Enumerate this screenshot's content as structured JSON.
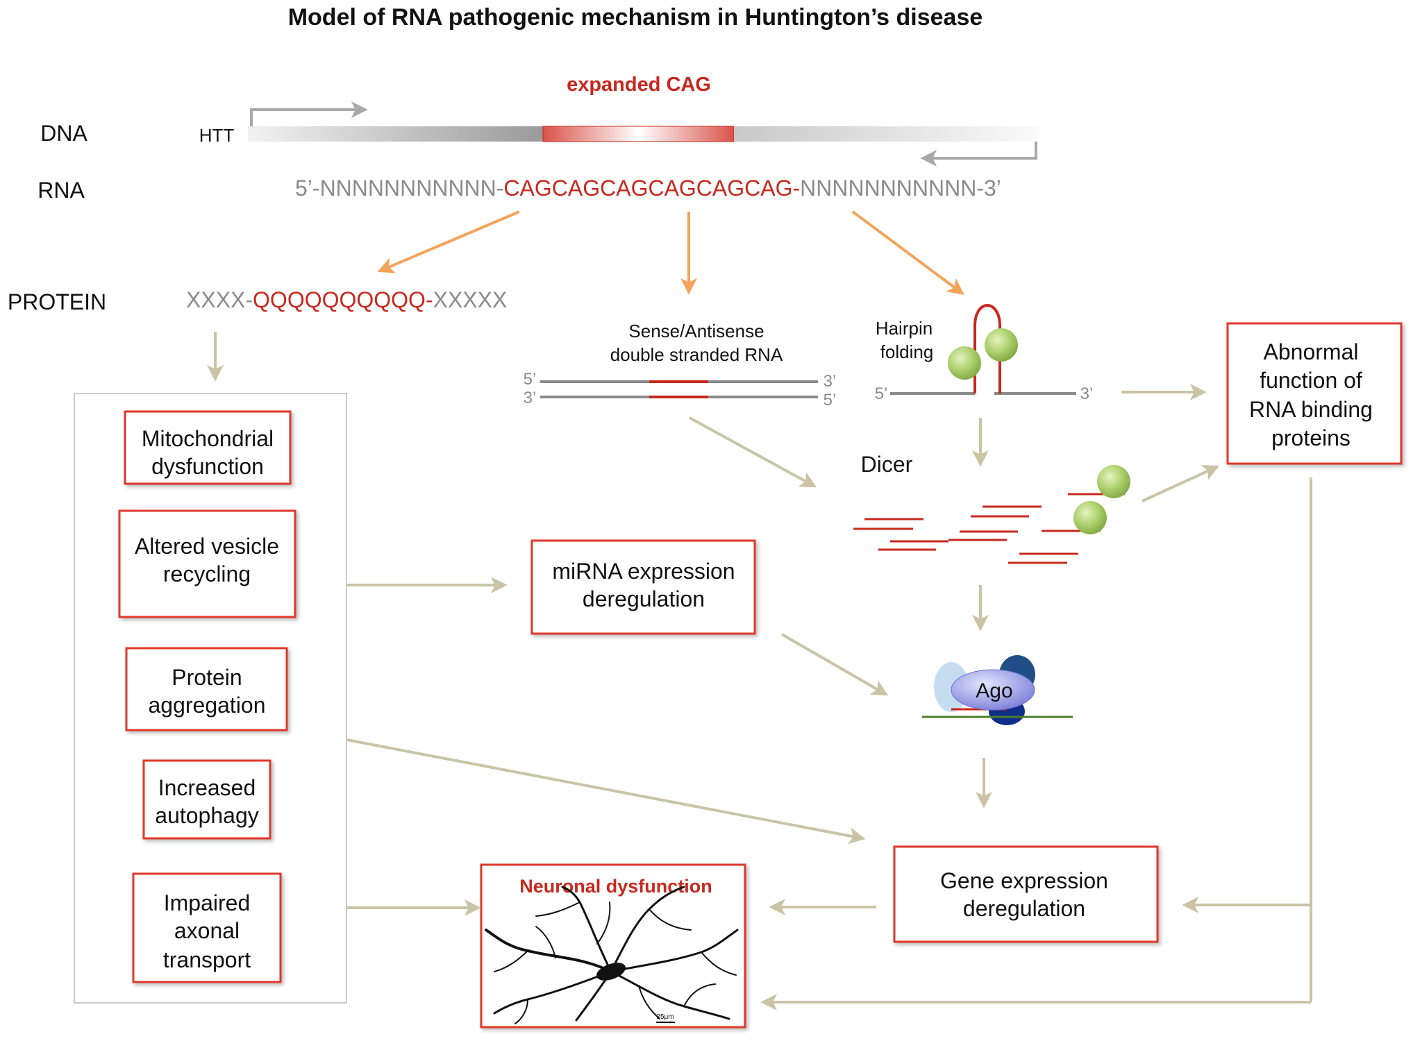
{
  "title": "Model of RNA pathogenic mechanism  in Huntington’s disease",
  "labels": {
    "expanded_cag": "expanded CAG",
    "dna": "DNA",
    "htt": "HTT",
    "rna": "RNA",
    "protein": "PROTEIN",
    "dicer": "Dicer",
    "ago": "Ago"
  },
  "rna_sequence": {
    "left": "5’-NNNNNNNNNNN-",
    "repeat": "CAGCAGCAGCAGCAGCAG-",
    "right": "NNNNNNNNNNN-3’"
  },
  "protein_sequence": {
    "left": "XXXX-",
    "repeat": "QQQQQQQQQQ-",
    "right": "XXXXX"
  },
  "dsrna": {
    "label_line1": "Sense/Antisense",
    "label_line2": "double stranded RNA",
    "top_left": "5’",
    "top_right": "3’",
    "bottom_left": "3’",
    "bottom_right": "5’"
  },
  "hairpin": {
    "label_line1": "Hairpin",
    "label_line2": "folding",
    "left_end": "5’",
    "right_end": "3’"
  },
  "boxes": {
    "mitochondrial": [
      "Mitochondrial",
      "dysfunction"
    ],
    "vesicle": [
      "Altered vesicle",
      "recycling"
    ],
    "aggregation": [
      "Protein",
      "aggregation"
    ],
    "autophagy": [
      "Increased",
      "autophagy"
    ],
    "axonal": [
      "Impaired",
      "axonal",
      "transport"
    ],
    "mirna": [
      "miRNA expression",
      "deregulation"
    ],
    "rbp": [
      "Abnormal",
      "function of",
      "RNA binding",
      "proteins"
    ],
    "gene_expr": [
      "Gene expression",
      "deregulation"
    ],
    "neuronal": "Neuronal dysfunction"
  },
  "scale_bar": "25μm",
  "colors": {
    "red": "#c8281e",
    "box_red": "#e0392b",
    "grey_text": "#8a8a8a",
    "orange_arrow": "#f4a45a",
    "tan_arrow": "#cbc3a5",
    "green_ball": "#a9cf6a",
    "ago_purple": "#8b8fe0",
    "dark_blue": "#0d2f8a",
    "mid_blue": "#1f4f86",
    "light_blue": "#c6dcf1",
    "mrna_green": "#4c7c2c"
  }
}
